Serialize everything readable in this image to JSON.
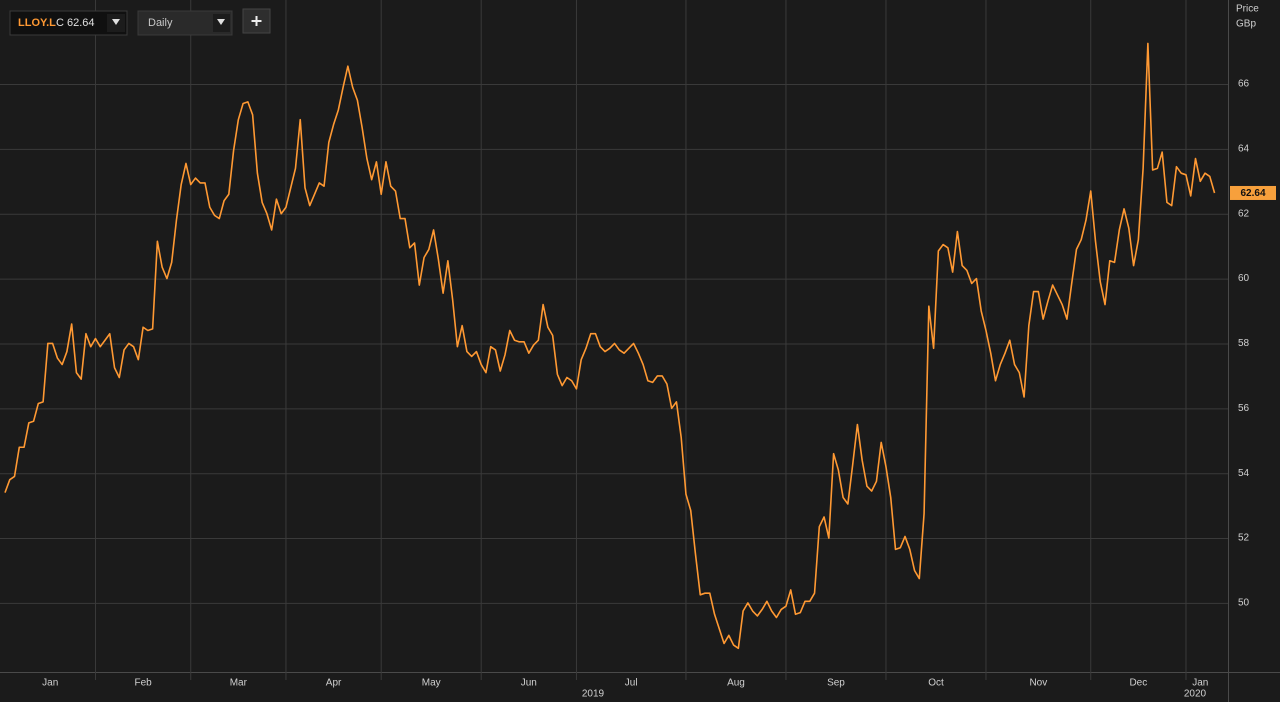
{
  "ui": {
    "symbol": "LLOY.L",
    "quote": "C 62.64",
    "interval": "Daily",
    "axis_title": "Price",
    "axis_unit": "GBp",
    "year_labels": [
      "2019",
      "2020"
    ]
  },
  "chart_data": {
    "type": "line",
    "color": "#ff9933",
    "grid": true,
    "values": [
      53.4,
      53.8,
      53.9,
      54.8,
      54.8,
      55.55,
      55.6,
      56.15,
      56.2,
      58.0,
      58.0,
      57.55,
      57.35,
      57.75,
      58.6,
      57.1,
      56.9,
      58.3,
      57.9,
      58.15,
      57.9,
      58.1,
      58.3,
      57.25,
      56.95,
      57.8,
      58.0,
      57.9,
      57.5,
      58.5,
      58.4,
      58.45,
      61.15,
      60.35,
      60.0,
      60.5,
      61.8,
      62.9,
      63.55,
      62.9,
      63.1,
      62.95,
      62.95,
      62.2,
      61.95,
      61.85,
      62.4,
      62.6,
      63.95,
      64.9,
      65.4,
      65.45,
      65.05,
      63.25,
      62.35,
      62.0,
      61.5,
      62.45,
      62.0,
      62.2,
      62.8,
      63.4,
      64.9,
      62.8,
      62.25,
      62.6,
      62.95,
      62.85,
      64.2,
      64.75,
      65.2,
      65.9,
      66.55,
      65.9,
      65.5,
      64.65,
      63.7,
      63.05,
      63.6,
      62.6,
      63.6,
      62.85,
      62.7,
      61.85,
      61.85,
      60.95,
      61.1,
      59.8,
      60.65,
      60.9,
      61.5,
      60.6,
      59.55,
      60.55,
      59.35,
      57.9,
      58.55,
      57.75,
      57.6,
      57.75,
      57.35,
      57.1,
      57.9,
      57.8,
      57.15,
      57.65,
      58.4,
      58.1,
      58.05,
      58.05,
      57.7,
      57.95,
      58.1,
      59.2,
      58.5,
      58.25,
      57.05,
      56.7,
      56.95,
      56.85,
      56.6,
      57.5,
      57.85,
      58.3,
      58.3,
      57.9,
      57.75,
      57.85,
      58.0,
      57.8,
      57.7,
      57.85,
      58.0,
      57.7,
      57.35,
      56.85,
      56.8,
      57.0,
      57.0,
      56.75,
      56.0,
      56.2,
      55.1,
      53.35,
      52.85,
      51.5,
      50.25,
      50.3,
      50.3,
      49.65,
      49.2,
      48.75,
      49.0,
      48.7,
      48.6,
      49.75,
      50.0,
      49.75,
      49.6,
      49.8,
      50.05,
      49.75,
      49.55,
      49.8,
      49.9,
      50.4,
      49.65,
      49.7,
      50.05,
      50.05,
      50.3,
      52.35,
      52.65,
      52.0,
      54.6,
      54.1,
      53.25,
      53.05,
      54.25,
      55.5,
      54.4,
      53.6,
      53.45,
      53.75,
      54.95,
      54.2,
      53.25,
      51.65,
      51.7,
      52.05,
      51.65,
      51.0,
      50.75,
      52.75,
      59.15,
      57.85,
      60.85,
      61.05,
      60.95,
      60.2,
      61.45,
      60.4,
      60.25,
      59.85,
      60.0,
      59.0,
      58.4,
      57.7,
      56.85,
      57.35,
      57.7,
      58.1,
      57.35,
      57.1,
      56.35,
      58.55,
      59.6,
      59.6,
      58.75,
      59.3,
      59.8,
      59.5,
      59.2,
      58.75,
      59.85,
      60.9,
      61.2,
      61.8,
      62.7,
      61.15,
      59.9,
      59.2,
      60.55,
      60.5,
      61.5,
      62.15,
      61.55,
      60.4,
      61.2,
      63.4,
      67.25,
      63.35,
      63.4,
      63.9,
      62.35,
      62.25,
      63.45,
      63.25,
      63.2,
      62.55,
      63.7,
      63.0,
      63.25,
      63.15,
      62.64
    ],
    "last_value": 62.64,
    "xlim": [
      0,
      257
    ],
    "xticks": [
      {
        "value": 0,
        "label": "Jan"
      },
      {
        "value": 19,
        "label": "Feb"
      },
      {
        "value": 39,
        "label": "Mar"
      },
      {
        "value": 59,
        "label": "Apr"
      },
      {
        "value": 79,
        "label": "May"
      },
      {
        "value": 100,
        "label": "Jun"
      },
      {
        "value": 120,
        "label": "Jul"
      },
      {
        "value": 143,
        "label": "Aug"
      },
      {
        "value": 164,
        "label": "Sep"
      },
      {
        "value": 185,
        "label": "Oct"
      },
      {
        "value": 206,
        "label": "Nov"
      },
      {
        "value": 228,
        "label": "Dec"
      },
      {
        "value": 248,
        "label": "Jan"
      }
    ],
    "ylim": [
      47.87,
      68.59
    ],
    "yticks": [
      50,
      52,
      54,
      56,
      58,
      60,
      62,
      64,
      66
    ]
  }
}
